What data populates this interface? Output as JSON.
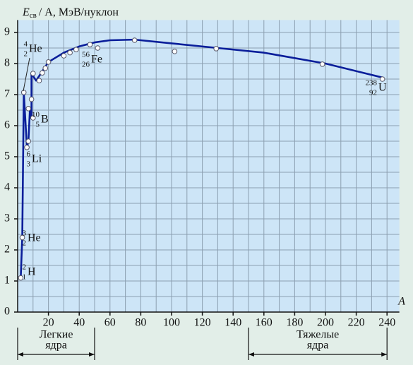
{
  "chart_data": {
    "type": "line_scatter",
    "y_label": {
      "symbol": "E",
      "subscript": "св",
      "rest": "/ A, МэВ/нуклон"
    },
    "x_label": "A",
    "xlim": [
      0,
      248
    ],
    "ylim": [
      0,
      9.4
    ],
    "xticks": [
      20,
      40,
      60,
      80,
      100,
      120,
      140,
      160,
      180,
      200,
      220,
      240
    ],
    "yticks": [
      0,
      1,
      2,
      3,
      4,
      5,
      6,
      7,
      8,
      9
    ],
    "grid": true,
    "minor_grid": true,
    "points": {
      "color": "#ffffff",
      "x": [
        2,
        3,
        4,
        6,
        7,
        7,
        9,
        10,
        10,
        14,
        16,
        18,
        20,
        30,
        34,
        38,
        47,
        52,
        76,
        102,
        129,
        198,
        237
      ],
      "values": [
        1.1,
        2.4,
        7.07,
        5.3,
        5.5,
        6.55,
        6.85,
        6.25,
        7.68,
        7.45,
        7.7,
        7.85,
        8.05,
        8.25,
        8.35,
        8.45,
        8.61,
        8.5,
        8.75,
        8.39,
        8.48,
        7.98,
        7.5
      ]
    },
    "curve": {
      "color": "#0a1e9a",
      "x": [
        2,
        3,
        4,
        6,
        7,
        8,
        9,
        9,
        10,
        12,
        14,
        16,
        20,
        30,
        40,
        50,
        60,
        76,
        100,
        130,
        160,
        200,
        237
      ],
      "values": [
        1.1,
        2.4,
        7.07,
        5.3,
        5.5,
        6.55,
        6.25,
        7.68,
        7.6,
        7.45,
        7.6,
        7.75,
        8.05,
        8.35,
        8.55,
        8.68,
        8.75,
        8.77,
        8.65,
        8.5,
        8.35,
        8.0,
        7.55
      ]
    },
    "annotations": [
      {
        "mass": "4",
        "charge": "2",
        "symbol": "He"
      },
      {
        "mass": "3",
        "charge": "2",
        "symbol": "He"
      },
      {
        "mass": "2",
        "charge": "1",
        "symbol": "H"
      },
      {
        "mass": "6",
        "charge": "3",
        "symbol": "Li"
      },
      {
        "mass": "10",
        "charge": "5",
        "symbol": "B"
      },
      {
        "mass": "56",
        "charge": "26",
        "symbol": "Fe"
      },
      {
        "mass": "238",
        "charge": "92",
        "symbol": "U"
      }
    ],
    "groups": [
      {
        "lines": [
          "Легкие",
          "ядра"
        ],
        "range": [
          0,
          50
        ]
      },
      {
        "lines": [
          "Тяжелые",
          "ядра"
        ],
        "range": [
          150,
          240
        ]
      }
    ]
  }
}
